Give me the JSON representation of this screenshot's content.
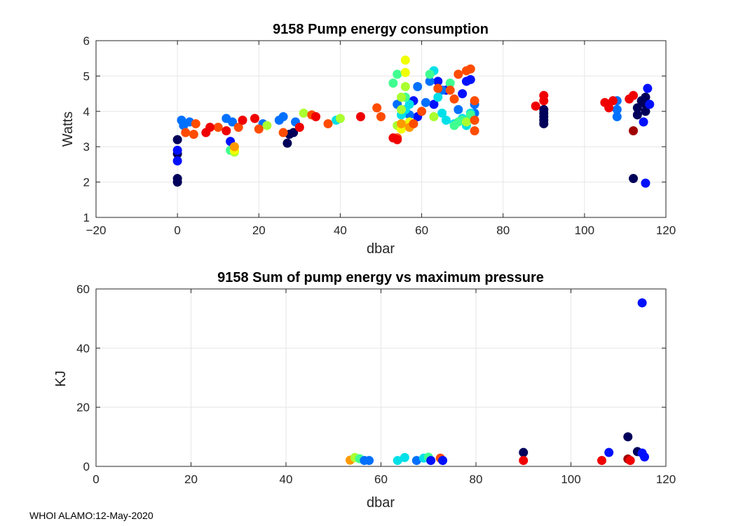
{
  "footer": "WHOI ALAMO:12-May-2020",
  "chart_data": [
    {
      "type": "scatter",
      "title": "9158 Pump energy consumption",
      "xlabel": "dbar",
      "ylabel": "Watts",
      "xlim": [
        -20,
        120
      ],
      "ylim": [
        1,
        6
      ],
      "xticks": [
        -20,
        0,
        20,
        40,
        60,
        80,
        100,
        120
      ],
      "yticks": [
        1,
        2,
        3,
        4,
        5,
        6
      ],
      "xtick_labels": [
        "−20",
        "0",
        "20",
        "40",
        "60",
        "80",
        "100",
        "120"
      ],
      "ytick_labels": [
        "1",
        "2",
        "3",
        "4",
        "5",
        "6"
      ],
      "grid": true,
      "series": [
        {
          "name": "dark-navy",
          "color": "#00005a",
          "points": [
            [
              0,
              2.0
            ],
            [
              0,
              2.1
            ],
            [
              0,
              2.8
            ],
            [
              0,
              3.2
            ],
            [
              27,
              3.1
            ],
            [
              27.5,
              3.35
            ],
            [
              28.5,
              3.4
            ],
            [
              90,
              3.65
            ],
            [
              90,
              3.75
            ],
            [
              90,
              3.85
            ],
            [
              90,
              3.95
            ],
            [
              90,
              4.05
            ],
            [
              112,
              2.1
            ],
            [
              113,
              3.9
            ],
            [
              113,
              4.1
            ],
            [
              114,
              4.3
            ],
            [
              115,
              4.0
            ],
            [
              115,
              4.2
            ],
            [
              115,
              4.4
            ]
          ]
        },
        {
          "name": "blue",
          "color": "#0010ff",
          "points": [
            [
              0,
              2.6
            ],
            [
              0,
              2.9
            ],
            [
              13,
              3.15
            ],
            [
              58,
              4.3
            ],
            [
              59,
              3.85
            ],
            [
              63,
              4.2
            ],
            [
              64,
              4.85
            ],
            [
              66,
              4.6
            ],
            [
              70,
              4.5
            ],
            [
              71,
              4.85
            ],
            [
              72,
              4.9
            ],
            [
              114.5,
              3.7
            ],
            [
              115,
              1.97
            ],
            [
              115.5,
              4.65
            ],
            [
              116,
              4.2
            ]
          ]
        },
        {
          "name": "azure",
          "color": "#0070ff",
          "points": [
            [
              1,
              3.75
            ],
            [
              1.5,
              3.6
            ],
            [
              3,
              3.7
            ],
            [
              12,
              3.8
            ],
            [
              13.5,
              3.7
            ],
            [
              21,
              3.65
            ],
            [
              25,
              3.75
            ],
            [
              26,
              3.85
            ],
            [
              29,
              3.7
            ],
            [
              54,
              4.2
            ],
            [
              57,
              3.9
            ],
            [
              59,
              4.7
            ],
            [
              61,
              4.25
            ],
            [
              62,
              4.85
            ],
            [
              65,
              4.6
            ],
            [
              69,
              4.05
            ],
            [
              73,
              3.95
            ],
            [
              73,
              4.2
            ],
            [
              108,
              3.85
            ],
            [
              108,
              4.05
            ],
            [
              108,
              4.3
            ]
          ]
        },
        {
          "name": "cyan",
          "color": "#00e0e8",
          "points": [
            [
              55,
              3.9
            ],
            [
              56,
              4.05
            ],
            [
              57,
              4.2
            ],
            [
              63,
              5.15
            ],
            [
              64,
              4.4
            ],
            [
              65,
              3.95
            ],
            [
              66,
              3.75
            ],
            [
              68,
              3.65
            ],
            [
              70,
              3.8
            ],
            [
              71,
              3.6
            ],
            [
              72,
              3.95
            ],
            [
              73,
              3.75
            ],
            [
              39,
              3.75
            ]
          ]
        },
        {
          "name": "green",
          "color": "#40ff90",
          "points": [
            [
              13,
              2.9
            ],
            [
              53,
              4.8
            ],
            [
              54,
              5.05
            ],
            [
              56,
              4.4
            ],
            [
              62,
              5.05
            ],
            [
              67,
              4.8
            ],
            [
              68,
              3.6
            ],
            [
              69,
              3.7
            ],
            [
              70,
              3.75
            ],
            [
              72,
              3.9
            ]
          ]
        },
        {
          "name": "lime",
          "color": "#aaff30",
          "points": [
            [
              14,
              2.85
            ],
            [
              22,
              3.6
            ],
            [
              31,
              3.95
            ],
            [
              40,
              3.8
            ],
            [
              54,
              3.6
            ],
            [
              55,
              4.05
            ],
            [
              55,
              4.4
            ],
            [
              56,
              4.7
            ],
            [
              63,
              3.85
            ],
            [
              71,
              3.7
            ]
          ]
        },
        {
          "name": "yellow",
          "color": "#f0ff00",
          "points": [
            [
              14,
              2.9
            ],
            [
              55,
              3.5
            ],
            [
              56,
              5.45
            ],
            [
              56,
              5.1
            ],
            [
              57,
              3.7
            ]
          ]
        },
        {
          "name": "orange",
          "color": "#ff9a00",
          "points": [
            [
              14,
              3.0
            ],
            [
              55,
              3.65
            ],
            [
              57,
              3.55
            ]
          ]
        },
        {
          "name": "orange-red",
          "color": "#ff4c00",
          "points": [
            [
              2,
              3.4
            ],
            [
              4,
              3.35
            ],
            [
              4.5,
              3.65
            ],
            [
              10,
              3.55
            ],
            [
              15,
              3.55
            ],
            [
              20,
              3.5
            ],
            [
              26,
              3.4
            ],
            [
              33,
              3.9
            ],
            [
              37,
              3.65
            ],
            [
              49,
              4.1
            ],
            [
              50,
              3.85
            ],
            [
              54,
              3.25
            ],
            [
              58,
              3.65
            ],
            [
              60,
              4.0
            ],
            [
              64,
              4.65
            ],
            [
              67,
              4.6
            ],
            [
              68,
              4.35
            ],
            [
              69,
              5.05
            ],
            [
              71,
              5.15
            ],
            [
              72,
              5.2
            ],
            [
              73,
              3.45
            ],
            [
              73,
              3.75
            ],
            [
              73,
              4.3
            ]
          ]
        },
        {
          "name": "red",
          "color": "#f00000",
          "points": [
            [
              7,
              3.4
            ],
            [
              8,
              3.55
            ],
            [
              12,
              3.45
            ],
            [
              16,
              3.75
            ],
            [
              19,
              3.8
            ],
            [
              30,
              3.55
            ],
            [
              34,
              3.85
            ],
            [
              45,
              3.85
            ],
            [
              53,
              3.25
            ],
            [
              54,
              3.2
            ],
            [
              88,
              4.15
            ],
            [
              90,
              4.3
            ],
            [
              90,
              4.45
            ],
            [
              105,
              4.25
            ],
            [
              106,
              4.1
            ],
            [
              107,
              4.3
            ],
            [
              111,
              4.35
            ],
            [
              112,
              4.45
            ]
          ]
        },
        {
          "name": "dark-red",
          "color": "#a00000",
          "points": [
            [
              112,
              3.45
            ]
          ]
        }
      ]
    },
    {
      "type": "scatter",
      "title": "9158 Sum of pump energy vs maximum pressure",
      "xlabel": "dbar",
      "ylabel": "KJ",
      "xlim": [
        0,
        120
      ],
      "ylim": [
        0,
        60
      ],
      "xticks": [
        0,
        20,
        40,
        60,
        80,
        100,
        120
      ],
      "yticks": [
        0,
        20,
        40,
        60
      ],
      "xtick_labels": [
        "0",
        "20",
        "40",
        "60",
        "80",
        "100",
        "120"
      ],
      "ytick_labels": [
        "0",
        "20",
        "40",
        "60"
      ],
      "grid": true,
      "points": [
        {
          "x": 53.5,
          "y": 2.1,
          "color": "#ff9a00"
        },
        {
          "x": 54.5,
          "y": 3.0,
          "color": "#aaff30"
        },
        {
          "x": 55.5,
          "y": 2.6,
          "color": "#40ff90"
        },
        {
          "x": 56.5,
          "y": 2.0,
          "color": "#0070ff"
        },
        {
          "x": 57.5,
          "y": 2.0,
          "color": "#0070ff"
        },
        {
          "x": 63.5,
          "y": 2.0,
          "color": "#00e0e8"
        },
        {
          "x": 65.0,
          "y": 3.0,
          "color": "#00e0e8"
        },
        {
          "x": 67.5,
          "y": 2.0,
          "color": "#0070ff"
        },
        {
          "x": 69.0,
          "y": 2.8,
          "color": "#00e0e8"
        },
        {
          "x": 70.0,
          "y": 3.1,
          "color": "#40ff90"
        },
        {
          "x": 70.5,
          "y": 2.0,
          "color": "#0010ff"
        },
        {
          "x": 72.5,
          "y": 2.8,
          "color": "#ff4c00"
        },
        {
          "x": 73.0,
          "y": 2.0,
          "color": "#0010ff"
        },
        {
          "x": 90.0,
          "y": 4.7,
          "color": "#00005a"
        },
        {
          "x": 90.0,
          "y": 2.0,
          "color": "#f00000"
        },
        {
          "x": 106.5,
          "y": 2.0,
          "color": "#f00000"
        },
        {
          "x": 108.0,
          "y": 4.7,
          "color": "#0010ff"
        },
        {
          "x": 112.0,
          "y": 10.0,
          "color": "#00005a"
        },
        {
          "x": 112.0,
          "y": 2.5,
          "color": "#a00000"
        },
        {
          "x": 112.5,
          "y": 2.0,
          "color": "#f00000"
        },
        {
          "x": 114.0,
          "y": 5.0,
          "color": "#00005a"
        },
        {
          "x": 115.0,
          "y": 55.3,
          "color": "#0010ff"
        },
        {
          "x": 115.0,
          "y": 4.5,
          "color": "#0010ff"
        },
        {
          "x": 115.5,
          "y": 3.2,
          "color": "#0010ff"
        }
      ]
    }
  ]
}
